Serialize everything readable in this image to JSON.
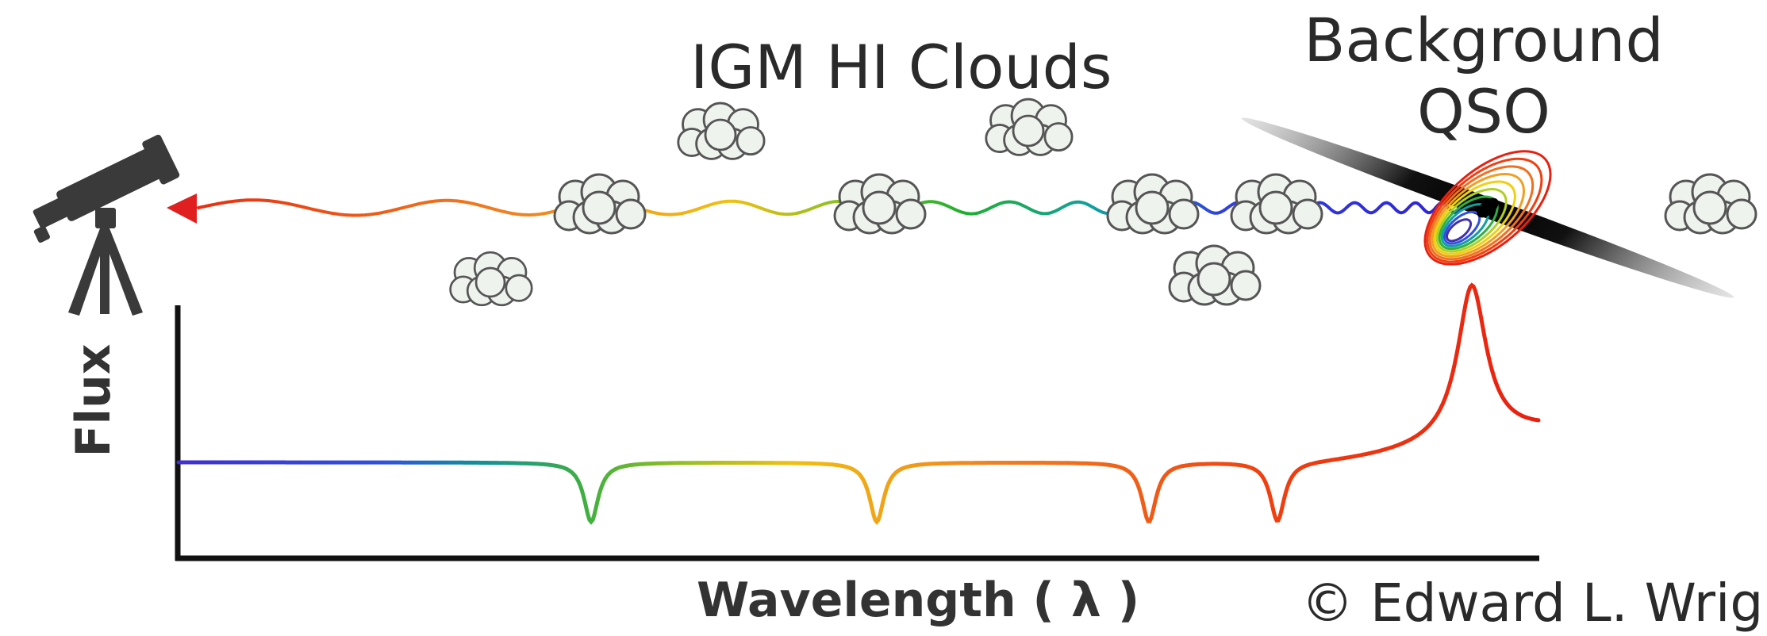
{
  "labels": {
    "clouds_title": "IGM HI Clouds",
    "qso_line1": "Background",
    "qso_line2": "QSO",
    "x_axis": "Wavelength ( λ )",
    "y_axis": "Flux",
    "credit": "© Edward L. Wright"
  },
  "icons": {
    "observer": "telescope-icon",
    "absorber": "cloud-icon",
    "source": "quasar-icon"
  },
  "colors": {
    "arrow": "#e02020",
    "axis": "#111111",
    "cloud_fill": "#eef3ee",
    "cloud_stroke": "#555555",
    "telescope": "#3a3a3a"
  }
}
